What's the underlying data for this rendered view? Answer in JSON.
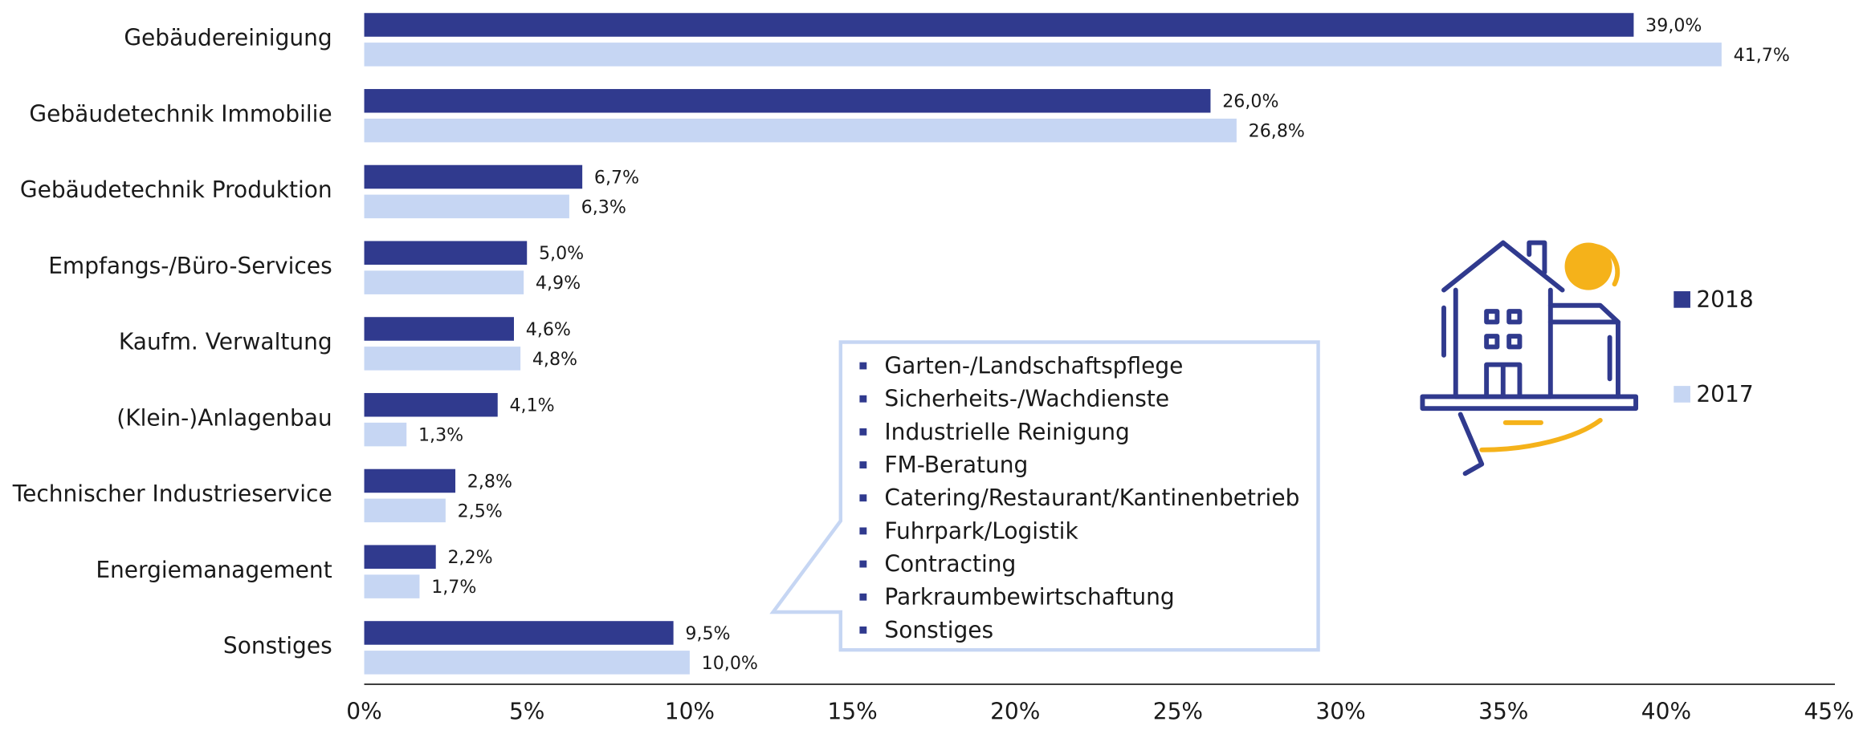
{
  "chart_data": {
    "type": "bar",
    "categories": [
      "Gebäudereinigung",
      "Gebäudetechnik Immobilie",
      "Gebäudetechnik Produktion",
      "Empfangs-/Büro-Services",
      "Kaufm. Verwaltung",
      "(Klein-)Anlagenbau",
      "Technischer Industrieservice",
      "Energiemanagement",
      "Sonstiges"
    ],
    "series": [
      {
        "name": "2018",
        "color": "#303a8e",
        "values": [
          39.0,
          26.0,
          6.7,
          5.0,
          4.6,
          4.1,
          2.8,
          2.2,
          9.5
        ],
        "value_labels": [
          "39,0%",
          "26,0%",
          "6,7%",
          "5,0%",
          "4,6%",
          "4,1%",
          "2,8%",
          "2,2%",
          "9,5%"
        ]
      },
      {
        "name": "2017",
        "color": "#c6d6f3",
        "values": [
          41.7,
          26.8,
          6.3,
          4.9,
          4.8,
          1.3,
          2.5,
          1.7,
          10.0
        ],
        "value_labels": [
          "41,7%",
          "26,8%",
          "6,3%",
          "4,9%",
          "4,8%",
          "1,3%",
          "2,5%",
          "1,7%",
          "10,0%"
        ]
      }
    ],
    "xlim": [
      0,
      45
    ],
    "xticks": [
      {
        "value": 0,
        "label": "0%"
      },
      {
        "value": 5,
        "label": "5%"
      },
      {
        "value": 10,
        "label": "10%"
      },
      {
        "value": 15,
        "label": "15%"
      },
      {
        "value": 20,
        "label": "20%"
      },
      {
        "value": 25,
        "label": "25%"
      },
      {
        "value": 30,
        "label": "30%"
      },
      {
        "value": 35,
        "label": "35%"
      },
      {
        "value": 40,
        "label": "40%"
      },
      {
        "value": 45,
        "label": "45%"
      }
    ],
    "callout_items": [
      "Garten-/Landschaftspflege",
      "Sicherheits-/Wachdienste",
      "Industrielle Reinigung",
      "FM-Beratung",
      "Catering/Restaurant/Kantinenbetrieb",
      "Fuhrpark/Logistik",
      "Contracting",
      "Parkraumbewirtschaftung",
      "Sonstiges"
    ]
  }
}
